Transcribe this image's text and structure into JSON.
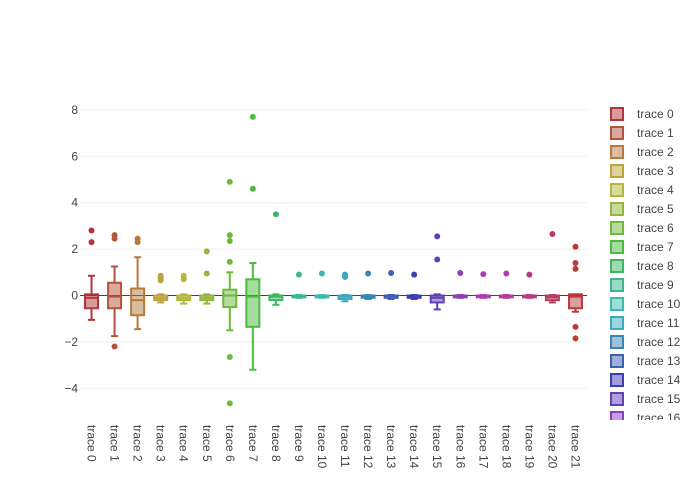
{
  "chart_data": {
    "type": "box",
    "title": "",
    "xlabel": "",
    "ylabel": "",
    "ylim": [
      -5.3,
      8.5
    ],
    "yticks": [
      8,
      6,
      4,
      2,
      0,
      -2,
      -4
    ],
    "ytick_labels": [
      "8",
      "6",
      "4",
      "2",
      "0",
      "−2",
      "−4"
    ],
    "legend_position": "right",
    "visible_legend_entries": 17,
    "series": [
      {
        "name": "trace 0",
        "color": "#b2353b",
        "q1": -0.55,
        "median": -0.1,
        "q3": 0.05,
        "whisker_low": -1.05,
        "whisker_high": 0.85,
        "outliers": [
          2.8,
          2.3
        ]
      },
      {
        "name": "trace 1",
        "color": "#b4533c",
        "q1": -0.55,
        "median": -0.05,
        "q3": 0.55,
        "whisker_low": -1.75,
        "whisker_high": 1.25,
        "outliers": [
          2.6,
          2.45,
          -2.2
        ]
      },
      {
        "name": "trace 2",
        "color": "#b8793d",
        "q1": -0.85,
        "median": -0.2,
        "q3": 0.3,
        "whisker_low": -1.45,
        "whisker_high": 1.65,
        "outliers": [
          2.45,
          2.3
        ]
      },
      {
        "name": "trace 3",
        "color": "#bba33e",
        "q1": -0.2,
        "median": -0.1,
        "q3": 0.0,
        "whisker_low": -0.3,
        "whisker_high": 0.05,
        "outliers": [
          0.85,
          0.75,
          0.65
        ]
      },
      {
        "name": "trace 4",
        "color": "#b1b83c",
        "q1": -0.2,
        "median": -0.1,
        "q3": 0.0,
        "whisker_low": -0.35,
        "whisker_high": 0.05,
        "outliers": [
          0.85,
          0.7
        ]
      },
      {
        "name": "trace 5",
        "color": "#94b63b",
        "q1": -0.2,
        "median": -0.1,
        "q3": 0.0,
        "whisker_low": -0.35,
        "whisker_high": 0.05,
        "outliers": [
          1.9,
          0.95
        ]
      },
      {
        "name": "trace 6",
        "color": "#6db93d",
        "q1": -0.5,
        "median": 0.0,
        "q3": 0.25,
        "whisker_low": -1.5,
        "whisker_high": 1.0,
        "outliers": [
          4.9,
          2.6,
          2.35,
          1.45,
          -2.65,
          -4.65
        ]
      },
      {
        "name": "trace 7",
        "color": "#4cbb40",
        "q1": -1.35,
        "median": -0.05,
        "q3": 0.7,
        "whisker_low": -3.2,
        "whisker_high": 1.4,
        "outliers": [
          7.7,
          4.6
        ]
      },
      {
        "name": "trace 8",
        "color": "#3db861",
        "q1": -0.2,
        "median": -0.05,
        "q3": 0.0,
        "whisker_low": -0.4,
        "whisker_high": 0.05,
        "outliers": [
          3.5
        ]
      },
      {
        "name": "trace 9",
        "color": "#3bb88d",
        "q1": -0.08,
        "median": -0.03,
        "q3": 0.0,
        "whisker_low": -0.1,
        "whisker_high": 0.02,
        "outliers": [
          0.9
        ]
      },
      {
        "name": "trace 10",
        "color": "#3cbab0",
        "q1": -0.08,
        "median": -0.03,
        "q3": 0.0,
        "whisker_low": -0.1,
        "whisker_high": 0.02,
        "outliers": [
          0.95
        ]
      },
      {
        "name": "trace 11",
        "color": "#3ba8bb",
        "q1": -0.15,
        "median": -0.05,
        "q3": 0.0,
        "whisker_low": -0.25,
        "whisker_high": 0.02,
        "outliers": [
          0.9,
          0.8
        ]
      },
      {
        "name": "trace 12",
        "color": "#3b85b8",
        "q1": -0.1,
        "median": -0.03,
        "q3": 0.0,
        "whisker_low": -0.15,
        "whisker_high": 0.02,
        "outliers": [
          0.95
        ]
      },
      {
        "name": "trace 13",
        "color": "#3c5fb8",
        "q1": -0.1,
        "median": -0.03,
        "q3": 0.0,
        "whisker_low": -0.15,
        "whisker_high": 0.02,
        "outliers": [
          0.97
        ]
      },
      {
        "name": "trace 14",
        "color": "#3d3eb5",
        "q1": -0.1,
        "median": -0.05,
        "q3": 0.0,
        "whisker_low": -0.15,
        "whisker_high": 0.02,
        "outliers": [
          0.9
        ]
      },
      {
        "name": "trace 15",
        "color": "#6240b8",
        "q1": -0.3,
        "median": -0.1,
        "q3": 0.0,
        "whisker_low": -0.6,
        "whisker_high": 0.05,
        "outliers": [
          2.55,
          1.55
        ]
      },
      {
        "name": "trace 16",
        "color": "#8c3eb8",
        "q1": -0.08,
        "median": -0.03,
        "q3": 0.0,
        "whisker_low": -0.1,
        "whisker_high": 0.02,
        "outliers": [
          0.97
        ]
      },
      {
        "name": "trace 17",
        "color": "#ad3cb6",
        "q1": -0.08,
        "median": -0.03,
        "q3": 0.0,
        "whisker_low": -0.1,
        "whisker_high": 0.02,
        "outliers": [
          0.92
        ]
      },
      {
        "name": "trace 18",
        "color": "#b83ba5",
        "q1": -0.08,
        "median": -0.03,
        "q3": 0.0,
        "whisker_low": -0.1,
        "whisker_high": 0.02,
        "outliers": [
          0.95
        ]
      },
      {
        "name": "trace 19",
        "color": "#b63b82",
        "q1": -0.08,
        "median": -0.03,
        "q3": 0.0,
        "whisker_low": -0.1,
        "whisker_high": 0.02,
        "outliers": [
          0.9
        ]
      },
      {
        "name": "trace 20",
        "color": "#b83c5e",
        "q1": -0.2,
        "median": -0.08,
        "q3": 0.0,
        "whisker_low": -0.3,
        "whisker_high": 0.02,
        "outliers": [
          2.65
        ]
      },
      {
        "name": "trace 21",
        "color": "#b83b3e",
        "q1": -0.55,
        "median": -0.05,
        "q3": 0.05,
        "whisker_low": -0.7,
        "whisker_high": 0.05,
        "outliers": [
          2.1,
          1.4,
          1.15,
          -1.35,
          -1.85
        ]
      }
    ]
  }
}
